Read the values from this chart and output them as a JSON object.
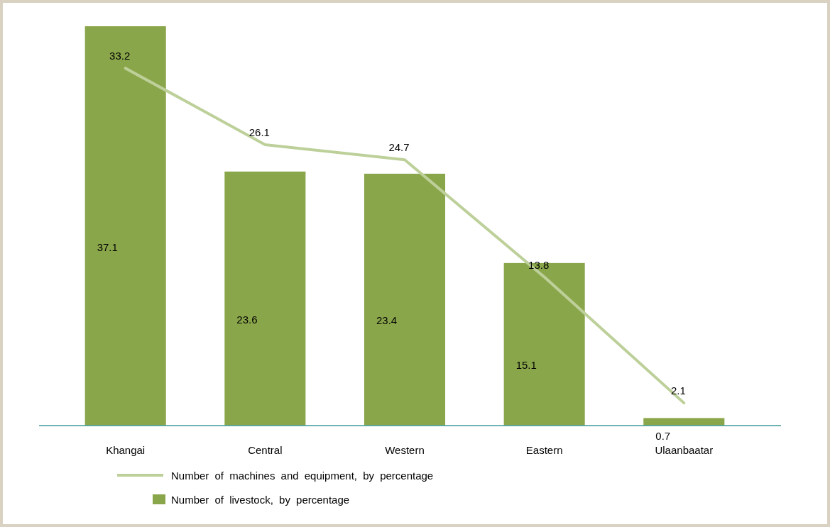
{
  "chart_data": {
    "type": "bar",
    "categories": [
      "Khangai",
      "Central",
      "Western",
      "Eastern",
      "Ulaanbaatar"
    ],
    "series": [
      {
        "name": "Number of livestock, by percentage",
        "color": "#8aa64b",
        "values": [
          37.1,
          23.6,
          23.4,
          15.1,
          0.7
        ]
      },
      {
        "type": "line",
        "name": "Number of machines and equipment, by percentage",
        "color": "#bdd09a",
        "values": [
          33.2,
          26.1,
          24.7,
          13.8,
          2.1
        ]
      }
    ],
    "data_labels": true,
    "legend": "bottom",
    "marker": "none"
  }
}
